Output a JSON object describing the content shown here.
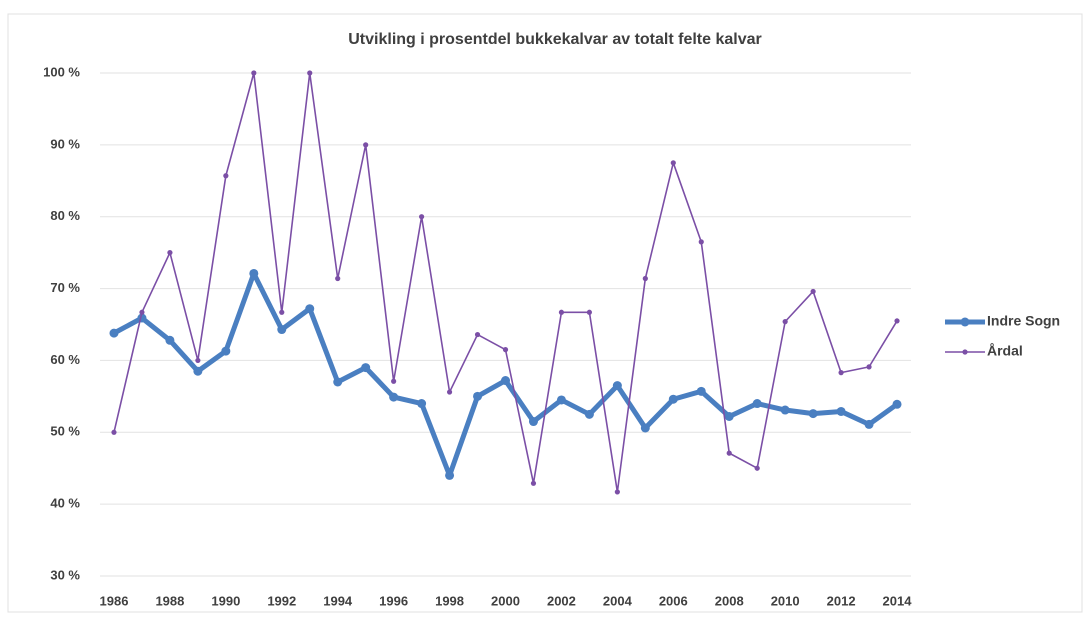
{
  "chart_data": {
    "type": "line",
    "title": "Utvikling i prosentdel bukkekalvar av totalt felte kalvar",
    "x": [
      1986,
      1987,
      1988,
      1989,
      1990,
      1991,
      1992,
      1993,
      1994,
      1995,
      1996,
      1997,
      1998,
      1999,
      2000,
      2001,
      2002,
      2003,
      2004,
      2005,
      2006,
      2007,
      2008,
      2009,
      2010,
      2011,
      2012,
      2013,
      2014
    ],
    "series": [
      {
        "name": "Indre Sogn",
        "color": "#4a7fc1",
        "values": [
          63.8,
          65.9,
          62.8,
          58.5,
          61.3,
          72.1,
          64.3,
          67.2,
          57.0,
          59.0,
          54.9,
          54.0,
          44.0,
          55.0,
          57.2,
          51.5,
          54.5,
          52.5,
          56.5,
          50.6,
          54.6,
          55.7,
          52.2,
          54.0,
          53.1,
          52.6,
          52.9,
          51.1,
          53.9
        ]
      },
      {
        "name": "Årdal",
        "color": "#7b4fa6",
        "values": [
          50,
          66.7,
          75,
          60,
          85.7,
          100,
          66.7,
          100,
          71.4,
          90,
          57.1,
          80,
          55.6,
          63.6,
          61.5,
          42.9,
          66.7,
          66.7,
          41.7,
          71.4,
          87.5,
          76.5,
          47.1,
          45,
          65.4,
          69.6,
          58.3,
          59.1,
          65.5
        ]
      }
    ],
    "xlim": [
      1985.5,
      2014.5
    ],
    "xticks": [
      1986,
      1988,
      1990,
      1992,
      1994,
      1996,
      1998,
      2000,
      2002,
      2004,
      2006,
      2008,
      2010,
      2012,
      2014
    ],
    "ylim": [
      30,
      100
    ],
    "yticks": [
      {
        "value": 30,
        "label": "30 %"
      },
      {
        "value": 40,
        "label": "40 %"
      },
      {
        "value": 50,
        "label": "50 %"
      },
      {
        "value": 60,
        "label": "60 %"
      },
      {
        "value": 70,
        "label": "70 %"
      },
      {
        "value": 80,
        "label": "80 %"
      },
      {
        "value": 90,
        "label": "90 %"
      },
      {
        "value": 100,
        "label": "100 %"
      }
    ],
    "grid": true,
    "legend": "right"
  }
}
